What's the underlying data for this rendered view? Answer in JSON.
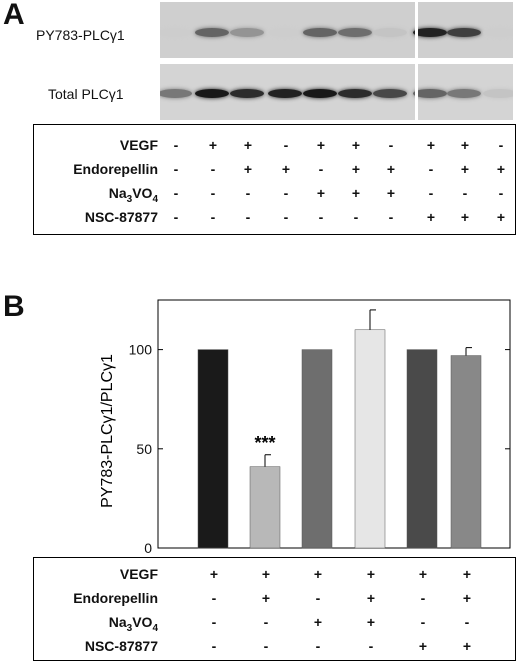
{
  "panel_a": {
    "letter": "A",
    "blot_labels": [
      "PY783-PLCγ1",
      "Total PLCγ1"
    ],
    "blot_top_intensity": [
      0,
      0.55,
      0.3,
      0,
      0.55,
      0.5,
      0.05,
      0.9,
      0.75,
      0
    ],
    "blot_bottom_intensity": [
      0.45,
      0.95,
      0.85,
      0.9,
      0.95,
      0.85,
      0.7,
      0.55,
      0.45,
      0.05
    ],
    "table": {
      "rows": [
        {
          "label": "VEGF",
          "signs": [
            "-",
            "+",
            "+",
            "-",
            "+",
            "+",
            "-",
            "+",
            "+",
            "-"
          ]
        },
        {
          "label": "Endorepellin",
          "signs": [
            "-",
            "-",
            "+",
            "+",
            "-",
            "+",
            "+",
            "-",
            "+",
            "+"
          ]
        },
        {
          "label": "Na3VO4",
          "signs": [
            "-",
            "-",
            "-",
            "-",
            "+",
            "+",
            "+",
            "-",
            "-",
            "-"
          ]
        },
        {
          "label": "NSC-87877",
          "signs": [
            "-",
            "-",
            "-",
            "-",
            "-",
            "-",
            "-",
            "+",
            "+",
            "+"
          ]
        }
      ]
    }
  },
  "panel_b": {
    "letter": "B",
    "table": {
      "rows": [
        {
          "label": "VEGF",
          "signs": [
            "+",
            "+",
            "+",
            "+",
            "+",
            "+"
          ]
        },
        {
          "label": "Endorepellin",
          "signs": [
            "-",
            "+",
            "-",
            "+",
            "-",
            "+"
          ]
        },
        {
          "label": "Na3VO4",
          "signs": [
            "-",
            "-",
            "+",
            "+",
            "-",
            "-"
          ]
        },
        {
          "label": "NSC-87877",
          "signs": [
            "-",
            "-",
            "-",
            "-",
            "+",
            "+"
          ]
        }
      ]
    }
  },
  "chart_data": {
    "type": "bar",
    "title": "",
    "xlabel": "",
    "ylabel": "PY783-PLCγ1/PLCγ1",
    "ylim": [
      0,
      125
    ],
    "yticks": [
      0,
      50,
      100
    ],
    "categories": [
      "1",
      "2",
      "3",
      "4",
      "5",
      "6"
    ],
    "values": [
      100,
      41,
      100,
      110,
      100,
      97
    ],
    "errors": [
      0,
      6,
      0,
      10,
      0,
      4
    ],
    "bar_colors": [
      "#1a1a1a",
      "#b8b8b8",
      "#6e6e6e",
      "#e6e6e6",
      "#4a4a4a",
      "#888888"
    ],
    "annotations": [
      {
        "category_index": 1,
        "text": "***"
      }
    ],
    "grid": false
  }
}
